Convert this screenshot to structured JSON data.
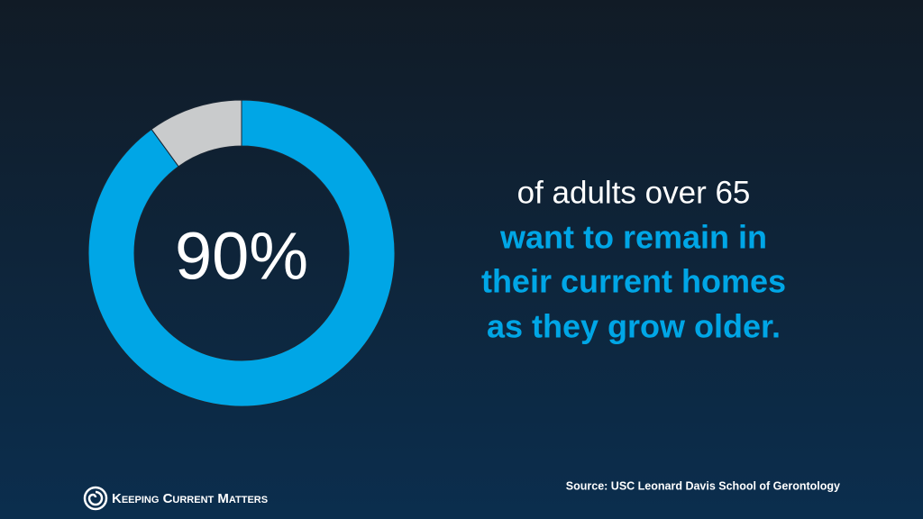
{
  "chart_data": {
    "type": "donut",
    "values": [
      90,
      10
    ],
    "value_labels": [
      "90%",
      null
    ],
    "colors": [
      "#00a6e6",
      "#c9cbcc"
    ],
    "statement": {
      "lead": "of adults over 65",
      "highlight": [
        "want to remain in",
        "their current homes",
        "as they grow older."
      ]
    },
    "source": "Source: USC Leonard Davis School of Gerontology",
    "brand": "Keeping Current Matters"
  }
}
